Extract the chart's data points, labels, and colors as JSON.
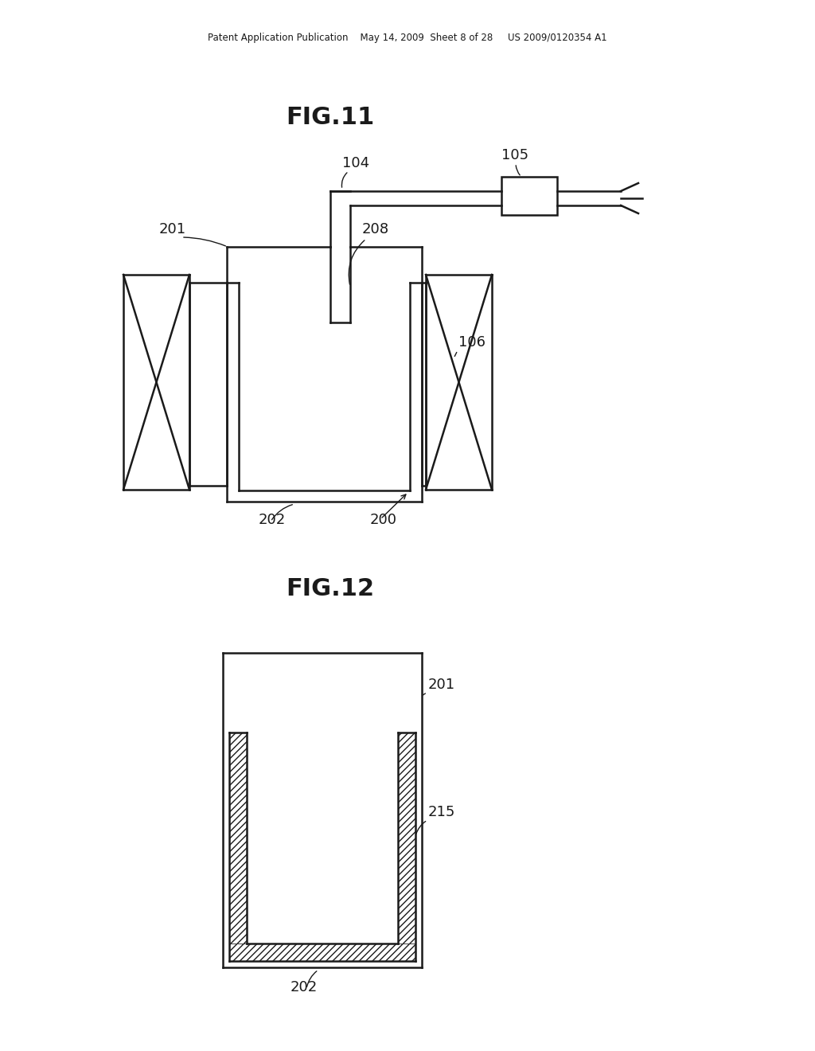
{
  "bg_color": "#ffffff",
  "line_color": "#1a1a1a",
  "header_text": "Patent Application Publication    May 14, 2009  Sheet 8 of 28     US 2009/0120354 A1",
  "fig11_title": "FIG.11",
  "fig12_title": "FIG.12",
  "lw": 1.8,
  "lw_thin": 1.0,
  "label_fontsize": 13,
  "title_fontsize": 22
}
